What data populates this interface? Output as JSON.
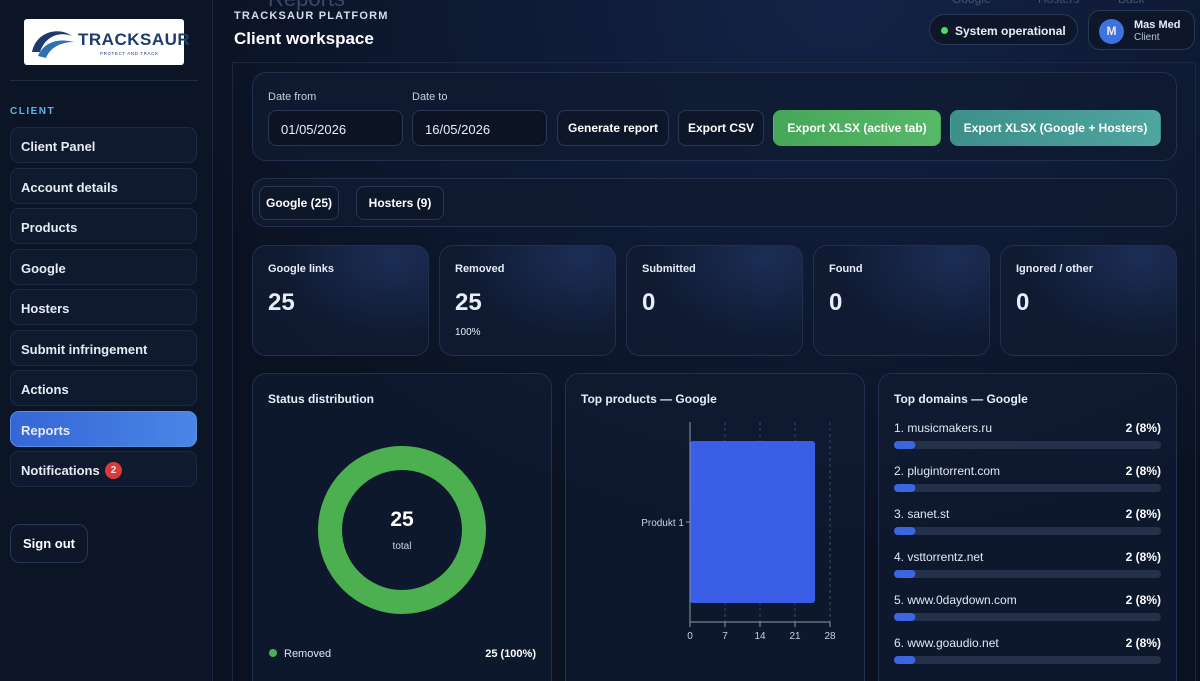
{
  "sidebar": {
    "logo": {
      "name": "TRACKSAUR",
      "tagline": "PROTECT AND TRACK"
    },
    "section": "CLIENT",
    "nav": [
      {
        "label": "Client Panel"
      },
      {
        "label": "Account details"
      },
      {
        "label": "Products"
      },
      {
        "label": "Google"
      },
      {
        "label": "Hosters"
      },
      {
        "label": "Submit infringement"
      },
      {
        "label": "Actions"
      },
      {
        "label": "Reports",
        "active": true
      },
      {
        "label": "Notifications",
        "badge": 2
      }
    ],
    "sign_out": "Sign out"
  },
  "header": {
    "eyebrow": "TRACKSAUR PLATFORM",
    "title": "Client workspace",
    "background_title": "Reports",
    "background_links": [
      "Google",
      "Hosters",
      "Back"
    ],
    "status": "System operational",
    "user": {
      "initial": "M",
      "name": "Mas Med",
      "role": "Client"
    }
  },
  "filters": {
    "date_from": {
      "label": "Date from",
      "value": "01/05/2026"
    },
    "date_to": {
      "label": "Date to",
      "value": "16/05/2026"
    },
    "buttons": [
      "Generate report",
      "Export CSV",
      "Export XLSX (active tab)",
      "Export XLSX (Google + Hosters)"
    ]
  },
  "tabs": [
    "Google (25)",
    "Hosters (9)"
  ],
  "stats": [
    {
      "label": "Google links",
      "value": 25
    },
    {
      "label": "Removed",
      "value": 25,
      "note": "100%"
    },
    {
      "label": "Submitted",
      "value": 0
    },
    {
      "label": "Found",
      "value": 0
    },
    {
      "label": "Ignored / other",
      "value": 0
    }
  ],
  "status_distribution": {
    "title": "Status distribution",
    "type": "donut",
    "total": 25,
    "total_label": "total",
    "segments": [
      {
        "name": "Removed",
        "value": 25,
        "value_label": "25 (100%)",
        "color": "#4caf50"
      }
    ]
  },
  "top_products": {
    "title": "Top products — Google",
    "type": "bar",
    "orientation": "horizontal",
    "categories": [
      "Produkt 1"
    ],
    "values": [
      25
    ],
    "color": "#3b5ee6",
    "xlim": [
      0,
      28
    ],
    "xticks": [
      0,
      7,
      14,
      21,
      28
    ],
    "grid": true
  },
  "top_domains": {
    "title": "Top domains — Google",
    "items": [
      {
        "name": "1. musicmakers.ru",
        "count": 2,
        "share": 8,
        "label": "2 (8%)"
      },
      {
        "name": "2. plugintorrent.com",
        "count": 2,
        "share": 8,
        "label": "2 (8%)"
      },
      {
        "name": "3. sanet.st",
        "count": 2,
        "share": 8,
        "label": "2 (8%)"
      },
      {
        "name": "4. vsttorrentz.net",
        "count": 2,
        "share": 8,
        "label": "2 (8%)"
      },
      {
        "name": "5. www.0daydown.com",
        "count": 2,
        "share": 8,
        "label": "2 (8%)"
      },
      {
        "name": "6. www.goaudio.net",
        "count": 2,
        "share": 8,
        "label": "2 (8%)"
      }
    ]
  }
}
